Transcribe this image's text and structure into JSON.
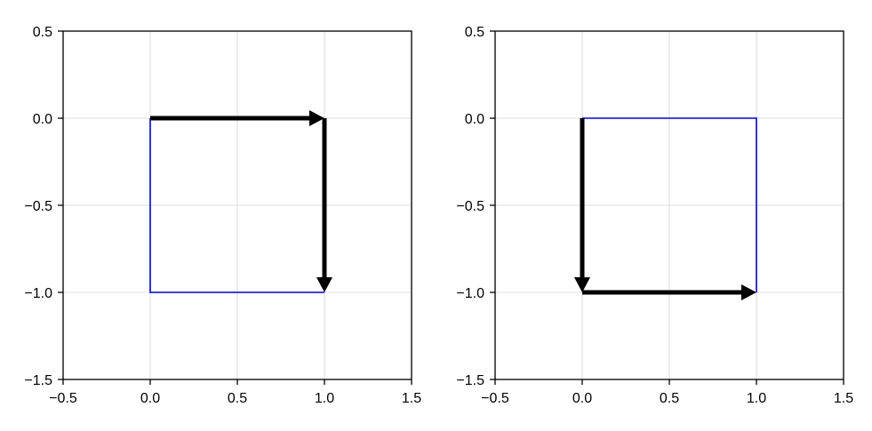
{
  "chart_data": [
    {
      "type": "line",
      "title": "",
      "xlabel": "",
      "ylabel": "",
      "xlim": [
        -0.5,
        1.5
      ],
      "ylim": [
        -1.5,
        0.5
      ],
      "grid": true,
      "xticks": [
        -0.5,
        0.0,
        0.5,
        1.0,
        1.5
      ],
      "xtick_labels": [
        "−0.5",
        "0.0",
        "0.5",
        "1.0",
        "1.5"
      ],
      "yticks": [
        -1.5,
        -1.0,
        -0.5,
        0.0,
        0.5
      ],
      "ytick_labels": [
        "−1.5",
        "−1.0",
        "−0.5",
        "0.0",
        "0.5"
      ],
      "series": [
        {
          "color": "#0000ff",
          "x": [
            0,
            0,
            1
          ],
          "y": [
            0,
            -1,
            -1
          ]
        }
      ],
      "arrows": [
        {
          "from": [
            0,
            0
          ],
          "to": [
            1,
            0
          ],
          "color": "#000000"
        },
        {
          "from": [
            1,
            0
          ],
          "to": [
            1,
            -1
          ],
          "color": "#000000"
        }
      ]
    },
    {
      "type": "line",
      "title": "",
      "xlabel": "",
      "ylabel": "",
      "xlim": [
        -0.5,
        1.5
      ],
      "ylim": [
        -1.5,
        0.5
      ],
      "grid": true,
      "xticks": [
        -0.5,
        0.0,
        0.5,
        1.0,
        1.5
      ],
      "xtick_labels": [
        "−0.5",
        "0.0",
        "0.5",
        "1.0",
        "1.5"
      ],
      "yticks": [
        -1.5,
        -1.0,
        -0.5,
        0.0,
        0.5
      ],
      "ytick_labels": [
        "−1.5",
        "−1.0",
        "−0.5",
        "0.0",
        "0.5"
      ],
      "series": [
        {
          "color": "#0000ff",
          "x": [
            0,
            1,
            1
          ],
          "y": [
            0,
            0,
            -1
          ]
        }
      ],
      "arrows": [
        {
          "from": [
            0,
            0
          ],
          "to": [
            0,
            -1
          ],
          "color": "#000000"
        },
        {
          "from": [
            0,
            -1
          ],
          "to": [
            1,
            -1
          ],
          "color": "#000000"
        }
      ]
    }
  ]
}
